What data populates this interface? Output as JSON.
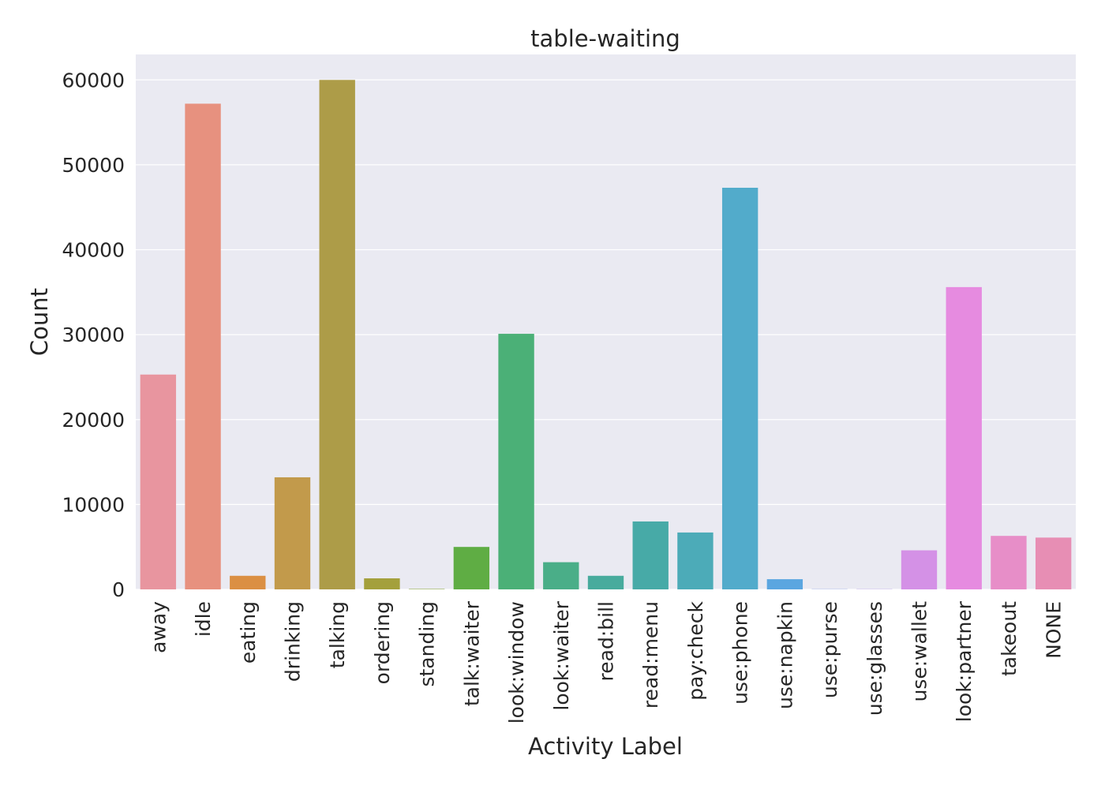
{
  "chart_data": {
    "type": "bar",
    "title": "table-waiting",
    "xlabel": "Activity Label",
    "ylabel": "Count",
    "ylim": [
      0,
      63000
    ],
    "yticks": [
      0,
      10000,
      20000,
      30000,
      40000,
      50000,
      60000
    ],
    "grid": true,
    "categories": [
      "away",
      "idle",
      "eating",
      "drinking",
      "talking",
      "ordering",
      "standing",
      "talk:waiter",
      "look:window",
      "look:waiter",
      "read:bill",
      "read:menu",
      "pay:check",
      "use:phone",
      "use:napkin",
      "use:purse",
      "use:glasses",
      "use:wallet",
      "look:partner",
      "takeout",
      "NONE"
    ],
    "values": [
      25300,
      57200,
      1600,
      13200,
      60000,
      1300,
      50,
      5000,
      30100,
      3200,
      1600,
      8000,
      6700,
      47300,
      1200,
      30,
      30,
      4600,
      35600,
      6300,
      6100
    ],
    "colors": [
      "#e8959f",
      "#e7917f",
      "#db8f43",
      "#c29a4b",
      "#ad9c48",
      "#a4a03c",
      "#8ba63f",
      "#5fad44",
      "#4bb077",
      "#4aae88",
      "#48ab9d",
      "#47aaa7",
      "#4cabb8",
      "#52abcb",
      "#5ba6e0",
      "#8e9fe4",
      "#b49be5",
      "#d491e6",
      "#e68be0",
      "#e78ec8",
      "#e78eb4"
    ]
  }
}
